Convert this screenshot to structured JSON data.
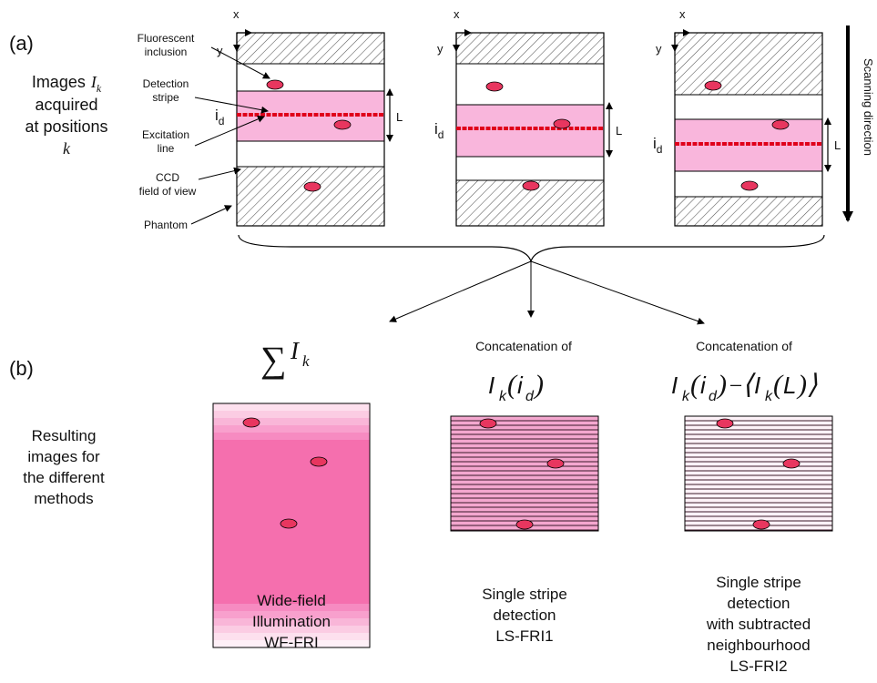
{
  "part_a": {
    "label": "(a)",
    "images_text": [
      "Images",
      "acquired",
      "at positions",
      "k"
    ],
    "images_symbol": "I",
    "images_symbol_sub": "k",
    "callouts": {
      "fluorescent": [
        "Fluorescent",
        "inclusion"
      ],
      "detection": [
        "Detection",
        "stripe"
      ],
      "excitation": [
        "Excitation",
        "line"
      ],
      "ccd": [
        "CCD",
        "field of view"
      ],
      "phantom": "Phantom"
    },
    "axis_x": "x",
    "axis_y": "y",
    "id_label": "i",
    "id_sub": "d",
    "L_label": "L",
    "scanning_label": "Scanning direction"
  },
  "part_b": {
    "label": "(b)",
    "side_text": [
      "Resulting",
      "images for",
      "the different",
      "methods"
    ],
    "methods": [
      {
        "formula_sum": "∑",
        "formula_I": "I",
        "formula_sub": "k",
        "caption": [
          "Wide-field",
          "Illumination",
          "WF-FRI"
        ]
      },
      {
        "header": "Concatenation of",
        "formula": "I_k(i_d)",
        "caption": [
          "Single stripe",
          "detection",
          "LS-FRI1"
        ]
      },
      {
        "header": "Concatenation of",
        "formula": "I_k(i_d) − ⟨I_k(L)⟩",
        "caption": [
          "Single stripe",
          "detection",
          "with subtracted",
          "neighbourhood",
          "LS-FRI2"
        ]
      }
    ]
  },
  "colors": {
    "stripe_fill": "#f9b6dc",
    "excitation_line": "#e0001b",
    "inclusion": "#e8365f",
    "wf_core": "#f56fae",
    "frame": "#000000"
  }
}
